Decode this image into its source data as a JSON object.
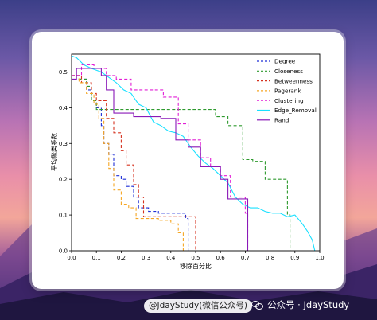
{
  "caption": "@JdayStudy(微信公众号)",
  "watermark": "公众号 · JdayStudy",
  "chart_data": {
    "type": "line",
    "xlabel": "移除百分比",
    "ylabel": "平均聚类系数",
    "xlim": [
      0.0,
      1.0
    ],
    "ylim": [
      0.0,
      0.55
    ],
    "xticks": [
      "0.0",
      "0.1",
      "0.2",
      "0.3",
      "0.4",
      "0.5",
      "0.6",
      "0.7",
      "0.8",
      "0.9",
      "1.0"
    ],
    "yticks": [
      "0.0",
      "0.1",
      "0.2",
      "0.3",
      "0.4",
      "0.5"
    ],
    "legend_position": "top-right",
    "grid": false,
    "series": [
      {
        "name": "Degree",
        "color": "#1f2fd6",
        "dash": true,
        "step": true,
        "points": [
          [
            0.0,
            0.49
          ],
          [
            0.03,
            0.48
          ],
          [
            0.06,
            0.45
          ],
          [
            0.08,
            0.42
          ],
          [
            0.1,
            0.4
          ],
          [
            0.12,
            0.35
          ],
          [
            0.13,
            0.3
          ],
          [
            0.15,
            0.27
          ],
          [
            0.17,
            0.21
          ],
          [
            0.2,
            0.2
          ],
          [
            0.22,
            0.18
          ],
          [
            0.25,
            0.15
          ],
          [
            0.27,
            0.12
          ],
          [
            0.31,
            0.11
          ],
          [
            0.35,
            0.105
          ],
          [
            0.38,
            0.105
          ],
          [
            0.42,
            0.105
          ],
          [
            0.45,
            0.105
          ],
          [
            0.46,
            0.09
          ],
          [
            0.47,
            0.0
          ]
        ]
      },
      {
        "name": "Closeness",
        "color": "#2e9a2e",
        "dash": true,
        "step": true,
        "points": [
          [
            0.0,
            0.49
          ],
          [
            0.03,
            0.48
          ],
          [
            0.06,
            0.46
          ],
          [
            0.08,
            0.42
          ],
          [
            0.1,
            0.395
          ],
          [
            0.3,
            0.395
          ],
          [
            0.5,
            0.395
          ],
          [
            0.58,
            0.375
          ],
          [
            0.63,
            0.35
          ],
          [
            0.69,
            0.255
          ],
          [
            0.73,
            0.25
          ],
          [
            0.78,
            0.2
          ],
          [
            0.82,
            0.2
          ],
          [
            0.86,
            0.2
          ],
          [
            0.87,
            0.1
          ],
          [
            0.88,
            0.0
          ]
        ]
      },
      {
        "name": "Betweenness",
        "color": "#d6321f",
        "dash": true,
        "step": true,
        "points": [
          [
            0.0,
            0.49
          ],
          [
            0.04,
            0.47
          ],
          [
            0.08,
            0.44
          ],
          [
            0.1,
            0.42
          ],
          [
            0.14,
            0.37
          ],
          [
            0.17,
            0.33
          ],
          [
            0.2,
            0.28
          ],
          [
            0.22,
            0.24
          ],
          [
            0.25,
            0.185
          ],
          [
            0.27,
            0.15
          ],
          [
            0.29,
            0.095
          ],
          [
            0.32,
            0.095
          ],
          [
            0.38,
            0.095
          ],
          [
            0.43,
            0.095
          ],
          [
            0.47,
            0.095
          ],
          [
            0.5,
            0.0
          ]
        ]
      },
      {
        "name": "Pagerank",
        "color": "#f5a623",
        "dash": true,
        "step": true,
        "points": [
          [
            0.0,
            0.49
          ],
          [
            0.03,
            0.47
          ],
          [
            0.06,
            0.44
          ],
          [
            0.09,
            0.41
          ],
          [
            0.11,
            0.37
          ],
          [
            0.13,
            0.3
          ],
          [
            0.15,
            0.23
          ],
          [
            0.17,
            0.17
          ],
          [
            0.2,
            0.13
          ],
          [
            0.23,
            0.12
          ],
          [
            0.26,
            0.09
          ],
          [
            0.3,
            0.09
          ],
          [
            0.35,
            0.085
          ],
          [
            0.4,
            0.075
          ],
          [
            0.43,
            0.05
          ],
          [
            0.45,
            0.0
          ]
        ]
      },
      {
        "name": "Clustering",
        "color": "#e21fd6",
        "dash": true,
        "step": true,
        "points": [
          [
            0.0,
            0.49
          ],
          [
            0.04,
            0.52
          ],
          [
            0.09,
            0.51
          ],
          [
            0.14,
            0.49
          ],
          [
            0.18,
            0.48
          ],
          [
            0.24,
            0.45
          ],
          [
            0.32,
            0.45
          ],
          [
            0.37,
            0.43
          ],
          [
            0.43,
            0.355
          ],
          [
            0.47,
            0.31
          ],
          [
            0.52,
            0.26
          ],
          [
            0.56,
            0.235
          ],
          [
            0.6,
            0.21
          ],
          [
            0.64,
            0.15
          ],
          [
            0.67,
            0.15
          ],
          [
            0.7,
            0.105
          ],
          [
            0.71,
            0.0
          ]
        ]
      },
      {
        "name": "Edge_Removal",
        "color": "#19e0ff",
        "dash": false,
        "step": false,
        "points": [
          [
            0.0,
            0.545
          ],
          [
            0.02,
            0.54
          ],
          [
            0.05,
            0.52
          ],
          [
            0.08,
            0.51
          ],
          [
            0.12,
            0.5
          ],
          [
            0.15,
            0.485
          ],
          [
            0.18,
            0.47
          ],
          [
            0.21,
            0.45
          ],
          [
            0.24,
            0.44
          ],
          [
            0.27,
            0.41
          ],
          [
            0.3,
            0.4
          ],
          [
            0.33,
            0.36
          ],
          [
            0.36,
            0.35
          ],
          [
            0.39,
            0.335
          ],
          [
            0.42,
            0.33
          ],
          [
            0.45,
            0.32
          ],
          [
            0.48,
            0.29
          ],
          [
            0.51,
            0.265
          ],
          [
            0.54,
            0.245
          ],
          [
            0.57,
            0.23
          ],
          [
            0.6,
            0.21
          ],
          [
            0.63,
            0.19
          ],
          [
            0.66,
            0.15
          ],
          [
            0.69,
            0.13
          ],
          [
            0.72,
            0.12
          ],
          [
            0.75,
            0.12
          ],
          [
            0.78,
            0.11
          ],
          [
            0.81,
            0.105
          ],
          [
            0.84,
            0.105
          ],
          [
            0.87,
            0.095
          ],
          [
            0.9,
            0.1
          ],
          [
            0.93,
            0.075
          ],
          [
            0.95,
            0.055
          ],
          [
            0.97,
            0.03
          ],
          [
            0.98,
            0.0
          ]
        ]
      },
      {
        "name": "Rand",
        "color": "#8a19b8",
        "dash": false,
        "step": true,
        "points": [
          [
            0.0,
            0.48
          ],
          [
            0.02,
            0.51
          ],
          [
            0.07,
            0.51
          ],
          [
            0.12,
            0.49
          ],
          [
            0.14,
            0.45
          ],
          [
            0.17,
            0.385
          ],
          [
            0.22,
            0.385
          ],
          [
            0.25,
            0.375
          ],
          [
            0.3,
            0.375
          ],
          [
            0.36,
            0.37
          ],
          [
            0.4,
            0.37
          ],
          [
            0.42,
            0.31
          ],
          [
            0.45,
            0.31
          ],
          [
            0.47,
            0.29
          ],
          [
            0.52,
            0.235
          ],
          [
            0.58,
            0.235
          ],
          [
            0.6,
            0.2
          ],
          [
            0.63,
            0.145
          ],
          [
            0.7,
            0.145
          ],
          [
            0.71,
            0.0
          ]
        ]
      }
    ]
  }
}
